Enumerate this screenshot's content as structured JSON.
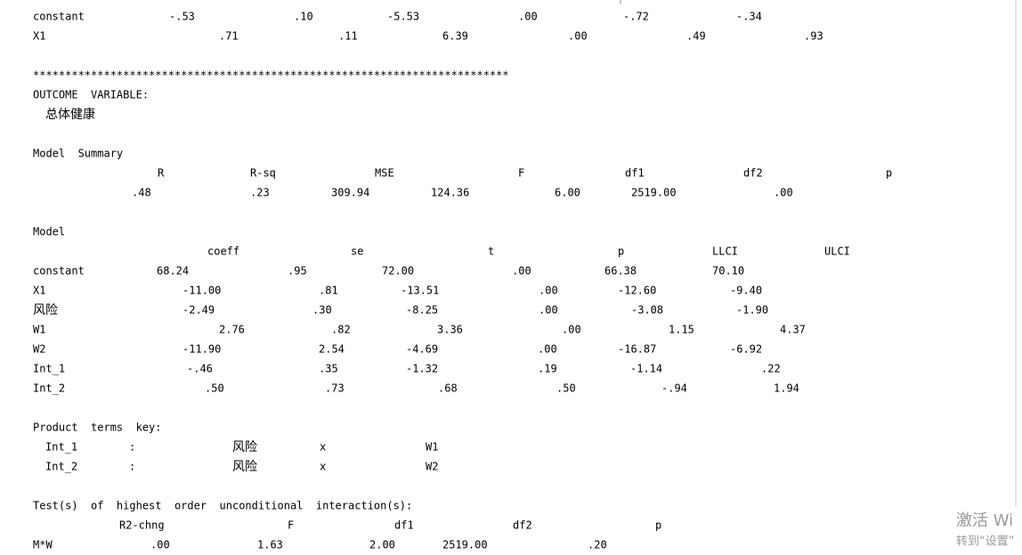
{
  "prev_table": {
    "rows": [
      [
        "constant",
        "-.53",
        ".10",
        "-5.53",
        ".00",
        "-.72",
        "-.34"
      ],
      [
        "X1",
        ".71",
        ".11",
        "6.39",
        ".00",
        ".49",
        ".93"
      ]
    ]
  },
  "separator": "**************************************************************************",
  "outcome": {
    "label": "OUTCOME  VARIABLE:",
    "variable": "总体健康"
  },
  "model_summary": {
    "title": "Model  Summary",
    "header": [
      "R",
      "R-sq",
      "MSE",
      "F",
      "df1",
      "df2",
      "p"
    ],
    "row": [
      ".48",
      ".23",
      "309.94",
      "124.36",
      "6.00",
      "2519.00",
      ".00"
    ]
  },
  "model": {
    "title": "Model",
    "header": [
      "coeff",
      "se",
      "t",
      "p",
      "LLCI",
      "ULCI"
    ],
    "rows": [
      [
        "constant",
        "68.24",
        ".95",
        "72.00",
        ".00",
        "66.38",
        "70.10"
      ],
      [
        "X1",
        "-11.00",
        ".81",
        "-13.51",
        ".00",
        "-12.60",
        "-9.40"
      ],
      [
        "风险",
        "-2.49",
        ".30",
        "-8.25",
        ".00",
        "-3.08",
        "-1.90"
      ],
      [
        "W1",
        "2.76",
        ".82",
        "3.36",
        ".00",
        "1.15",
        "4.37"
      ],
      [
        "W2",
        "-11.90",
        "2.54",
        "-4.69",
        ".00",
        "-16.87",
        "-6.92"
      ],
      [
        "Int_1",
        "-.46",
        ".35",
        "-1.32",
        ".19",
        "-1.14",
        ".22"
      ],
      [
        "Int_2",
        ".50",
        ".73",
        ".68",
        ".50",
        "-.94",
        "1.94"
      ]
    ]
  },
  "product_terms": {
    "title": "Product  terms  key:",
    "rows": [
      [
        "Int_1",
        ":",
        "风险",
        "x",
        "W1"
      ],
      [
        "Int_2",
        ":",
        "风险",
        "x",
        "W2"
      ]
    ]
  },
  "test": {
    "title": "Test(s)  of  highest  order  unconditional  interaction(s):",
    "header": [
      "R2-chng",
      "F",
      "df1",
      "df2",
      "p"
    ],
    "row": [
      "M*W",
      ".00",
      "1.63",
      "2.00",
      "2519.00",
      ".20"
    ]
  },
  "watermark": {
    "line1": "激活 Wi",
    "line2": "转到“设置”"
  }
}
